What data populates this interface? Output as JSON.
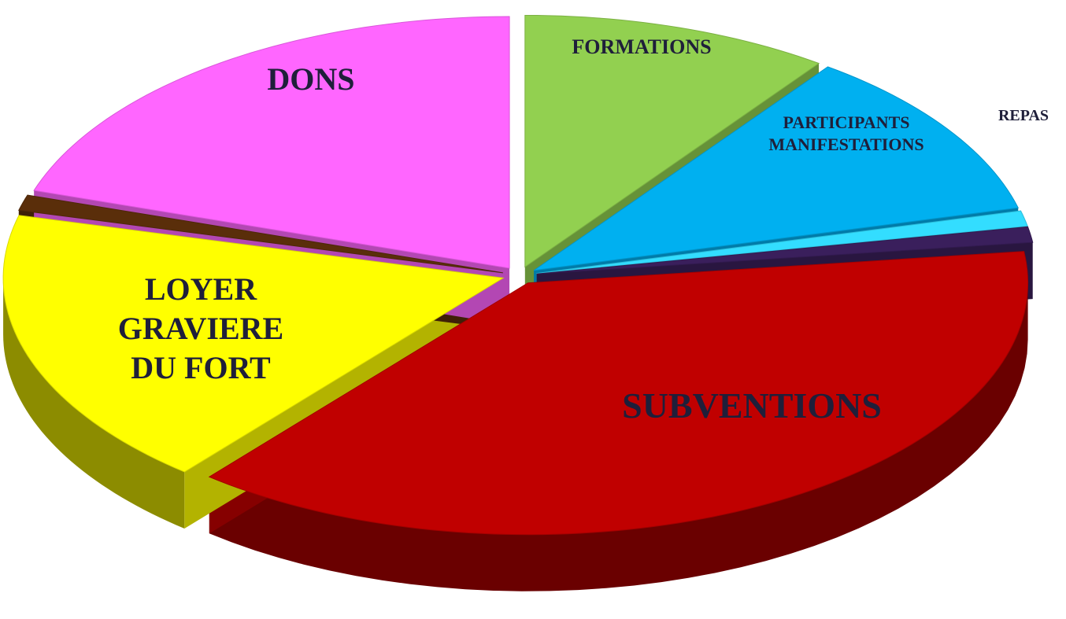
{
  "chart_data": {
    "type": "pie",
    "categories": [
      "FORMATIONS",
      "PARTICIPANTS\nMANIFESTATIONS",
      "REPAS",
      null,
      "SUBVENTIONS",
      "LOYER\nGRAVIERE\nDU FORT",
      null,
      "DONS"
    ],
    "values": [
      10,
      11,
      1,
      1,
      38,
      18,
      1,
      20
    ],
    "colors": [
      "#92d050",
      "#00b0f0",
      "#33ddff",
      "#3a1f5c",
      "#c00000",
      "#ffff00",
      "#5a2e0a",
      "#ff66ff"
    ]
  }
}
